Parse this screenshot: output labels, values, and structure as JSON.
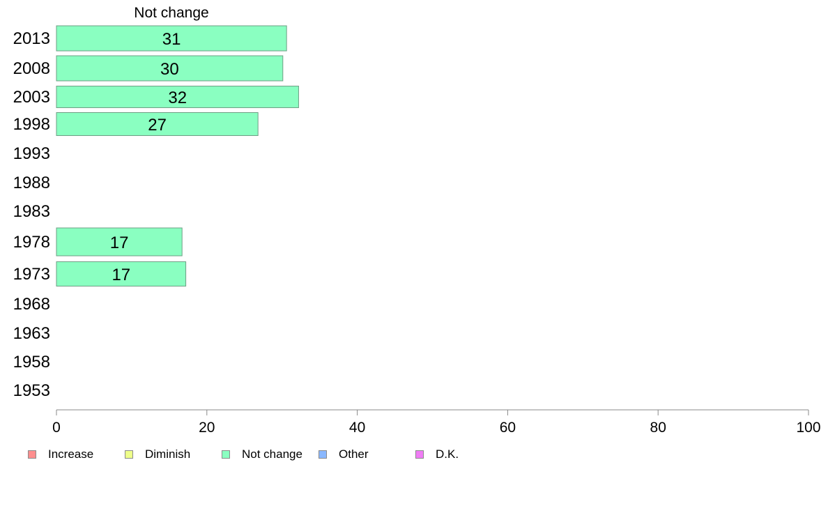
{
  "chart_data": {
    "type": "bar",
    "orientation": "horizontal",
    "title": "Not change",
    "xlim": [
      0,
      100
    ],
    "xticks": [
      "0",
      "20",
      "40",
      "60",
      "80",
      "100"
    ],
    "categories": [
      "2013",
      "2008",
      "2003",
      "1998",
      "1993",
      "1988",
      "1983",
      "1978",
      "1973",
      "1968",
      "1963",
      "1958",
      "1953"
    ],
    "series": [
      {
        "name": "Not change",
        "color": "#8affc1",
        "values": [
          30.6,
          30.1,
          32.2,
          26.8,
          null,
          null,
          null,
          16.7,
          17.2,
          null,
          null,
          null,
          null
        ],
        "data_labels": [
          "31",
          "30",
          "32",
          "27",
          null,
          null,
          null,
          "17",
          "17",
          null,
          null,
          null,
          null
        ]
      }
    ],
    "legend": {
      "position": "bottom-left",
      "items": [
        {
          "label": "Increase",
          "color": "#ff8f8f"
        },
        {
          "label": "Diminish",
          "color": "#eeff8a"
        },
        {
          "label": "Not change",
          "color": "#8affc1"
        },
        {
          "label": "Other",
          "color": "#8ab8ff"
        },
        {
          "label": "D.K.",
          "color": "#f07cf5"
        }
      ]
    },
    "grid": false
  }
}
